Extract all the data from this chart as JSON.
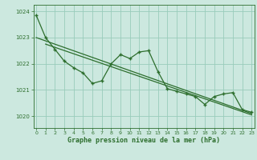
{
  "title": "Graphe pression niveau de la mer (hPa)",
  "bg_color": "#cce8df",
  "line_color": "#2d6e2d",
  "grid_color": "#99ccbb",
  "xlim": [
    -0.3,
    23.3
  ],
  "ylim": [
    1019.55,
    1024.25
  ],
  "yticks": [
    1020,
    1021,
    1022,
    1023,
    1024
  ],
  "xticks": [
    0,
    1,
    2,
    3,
    4,
    5,
    6,
    7,
    8,
    9,
    10,
    11,
    12,
    13,
    14,
    15,
    16,
    17,
    18,
    19,
    20,
    21,
    22,
    23
  ],
  "data_x": [
    0,
    1,
    2,
    3,
    4,
    5,
    6,
    7,
    8,
    9,
    10,
    11,
    12,
    13,
    14,
    15,
    16,
    17,
    18,
    19,
    20,
    21,
    22,
    23
  ],
  "data_y": [
    1023.85,
    1023.0,
    1022.55,
    1022.1,
    1021.85,
    1021.65,
    1021.25,
    1021.35,
    1022.0,
    1022.35,
    1022.2,
    1022.45,
    1022.5,
    1021.7,
    1021.05,
    1020.95,
    1020.85,
    1020.75,
    1020.45,
    1020.75,
    1020.85,
    1020.9,
    1020.25,
    1020.15
  ],
  "trend1_x": [
    0,
    23
  ],
  "trend1_y": [
    1023.0,
    1020.1
  ],
  "trend2_x": [
    1,
    23
  ],
  "trend2_y": [
    1022.75,
    1020.05
  ]
}
